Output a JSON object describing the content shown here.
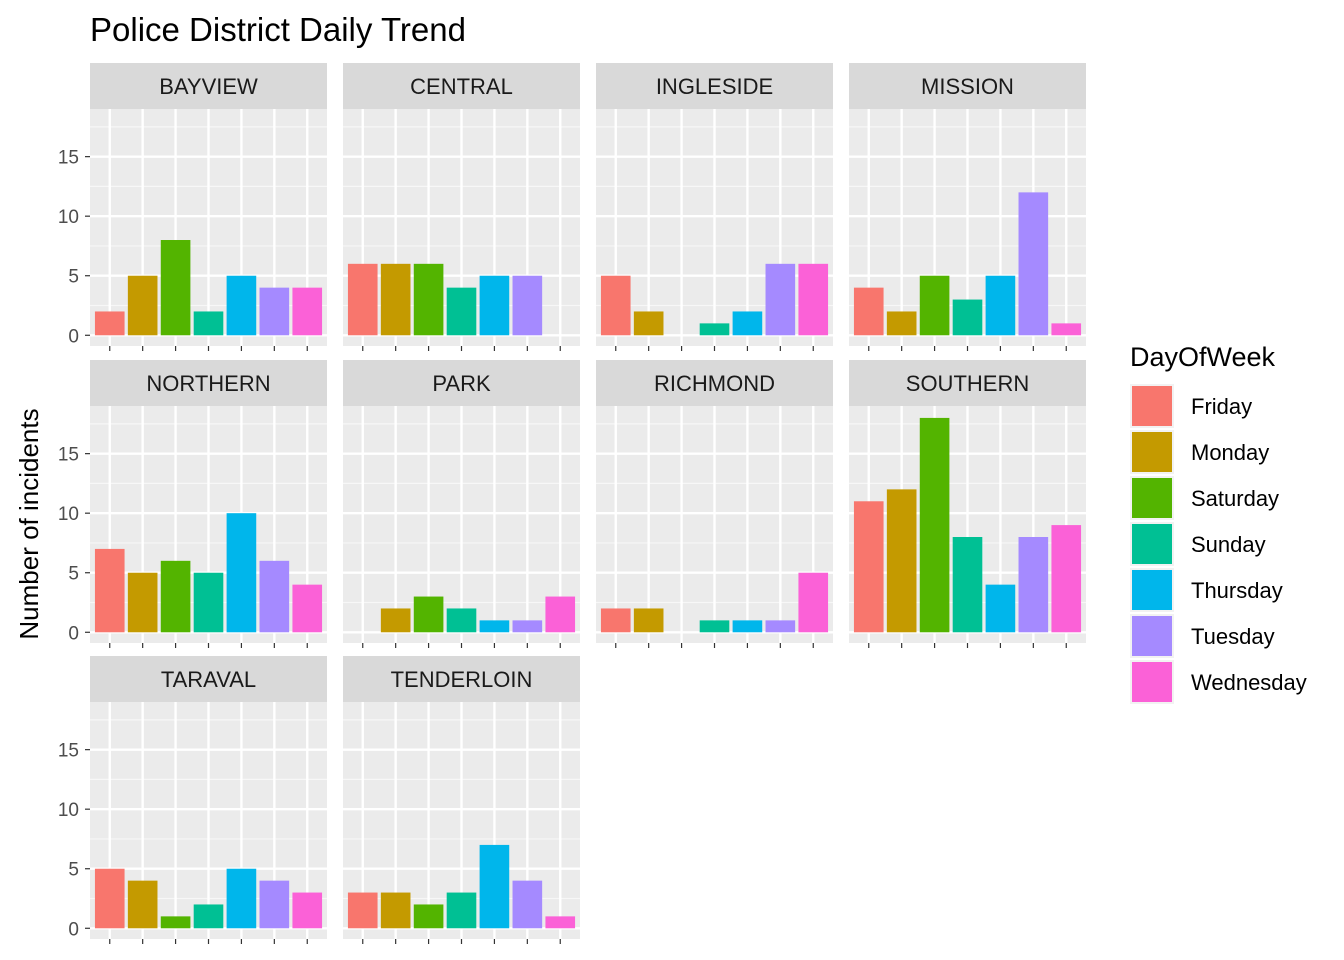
{
  "chart_data": {
    "type": "bar",
    "title": "Police District Daily Trend",
    "xlabel": "",
    "ylabel": "Number of incidents",
    "ylim": [
      0,
      19
    ],
    "yticks": [
      0,
      5,
      10,
      15
    ],
    "grid": true,
    "facet_by": "PdDistrict",
    "legend": {
      "title": "DayOfWeek",
      "placement": "right"
    },
    "categories": [
      "Friday",
      "Monday",
      "Saturday",
      "Sunday",
      "Thursday",
      "Tuesday",
      "Wednesday"
    ],
    "colors": {
      "Friday": "#F8766D",
      "Monday": "#C49A00",
      "Saturday": "#53B400",
      "Sunday": "#00C094",
      "Thursday": "#00B6EB",
      "Tuesday": "#A58AFF",
      "Wednesday": "#FB61D7"
    },
    "panels": [
      {
        "name": "BAYVIEW",
        "values": [
          2,
          5,
          8,
          2,
          5,
          4,
          4
        ]
      },
      {
        "name": "CENTRAL",
        "values": [
          6,
          6,
          6,
          4,
          5,
          5,
          0
        ]
      },
      {
        "name": "INGLESIDE",
        "values": [
          5,
          2,
          0,
          1,
          2,
          6,
          6
        ]
      },
      {
        "name": "MISSION",
        "values": [
          4,
          2,
          5,
          3,
          5,
          12,
          1
        ]
      },
      {
        "name": "NORTHERN",
        "values": [
          7,
          5,
          6,
          5,
          10,
          6,
          4
        ]
      },
      {
        "name": "PARK",
        "values": [
          0,
          2,
          3,
          2,
          1,
          1,
          3
        ]
      },
      {
        "name": "RICHMOND",
        "values": [
          2,
          2,
          0,
          1,
          1,
          1,
          5
        ]
      },
      {
        "name": "SOUTHERN",
        "values": [
          11,
          12,
          18,
          8,
          4,
          8,
          9
        ]
      },
      {
        "name": "TARAVAL",
        "values": [
          5,
          4,
          1,
          2,
          5,
          4,
          3
        ]
      },
      {
        "name": "TENDERLOIN",
        "values": [
          3,
          3,
          2,
          3,
          7,
          4,
          1
        ]
      }
    ]
  }
}
